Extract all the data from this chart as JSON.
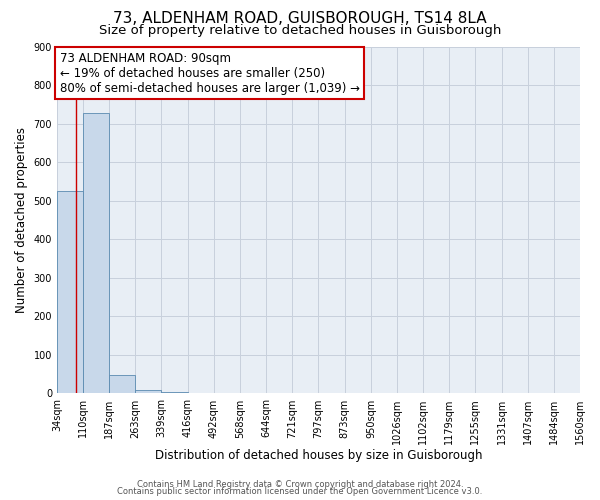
{
  "title": "73, ALDENHAM ROAD, GUISBOROUGH, TS14 8LA",
  "subtitle": "Size of property relative to detached houses in Guisborough",
  "xlabel": "Distribution of detached houses by size in Guisborough",
  "ylabel": "Number of detached properties",
  "bin_edges": [
    34,
    110,
    187,
    263,
    339,
    416,
    492,
    568,
    644,
    721,
    797,
    873,
    950,
    1026,
    1102,
    1179,
    1255,
    1331,
    1407,
    1484,
    1560
  ],
  "bar_heights": [
    525,
    728,
    48,
    10,
    5,
    0,
    0,
    0,
    0,
    0,
    0,
    0,
    0,
    0,
    0,
    0,
    0,
    0,
    0,
    0
  ],
  "bar_color": "#c8d8ea",
  "bar_edge_color": "#5a8ab0",
  "property_size": 90,
  "property_line_color": "#cc0000",
  "ylim": [
    0,
    900
  ],
  "annotation_line1": "73 ALDENHAM ROAD: 90sqm",
  "annotation_line2": "← 19% of detached houses are smaller (250)",
  "annotation_line3": "80% of semi-detached houses are larger (1,039) →",
  "annotation_box_color": "#cc0000",
  "footer_line1": "Contains HM Land Registry data © Crown copyright and database right 2024.",
  "footer_line2": "Contains public sector information licensed under the Open Government Licence v3.0.",
  "background_color": "#ffffff",
  "plot_bg_color": "#e8eef5",
  "grid_color": "#c8d0dc",
  "title_fontsize": 11,
  "subtitle_fontsize": 9.5,
  "tick_label_fontsize": 7,
  "ylabel_fontsize": 8.5,
  "xlabel_fontsize": 8.5,
  "annotation_fontsize": 8.5,
  "footer_fontsize": 6
}
